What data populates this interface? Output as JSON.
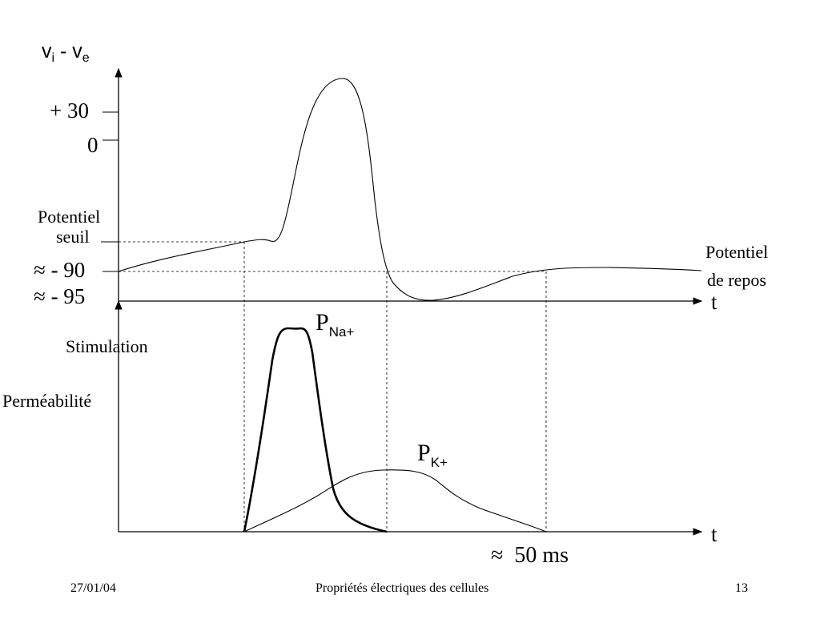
{
  "diagram": {
    "y_axis_label": {
      "main1": "v",
      "sub1": "i",
      "sep": " - ",
      "main2": "v",
      "sub2": "e"
    },
    "tick_plus30": "+ 30",
    "tick_zero": "0",
    "threshold_label_line1": "Potentiel",
    "threshold_label_line2": "seuil",
    "tick_minus90": "≈ - 90",
    "tick_minus95": "≈ - 95",
    "resting_label_line1": "Potentiel",
    "resting_label_line2": "de repos",
    "t_axis_top": "t",
    "t_axis_bottom": "t",
    "stimulation_label": "Stimulation",
    "permeability_label": "Perméabilité",
    "pna_label": {
      "main": "P",
      "sub": "Na+"
    },
    "pk_label": {
      "main": "P",
      "sub": "K+"
    },
    "duration_label": "≈  50 ms"
  },
  "footer": {
    "date": "27/01/04",
    "title": "Propriétés électriques des cellules",
    "page": "13"
  },
  "colors": {
    "ink": "#000000",
    "background": "#ffffff"
  }
}
